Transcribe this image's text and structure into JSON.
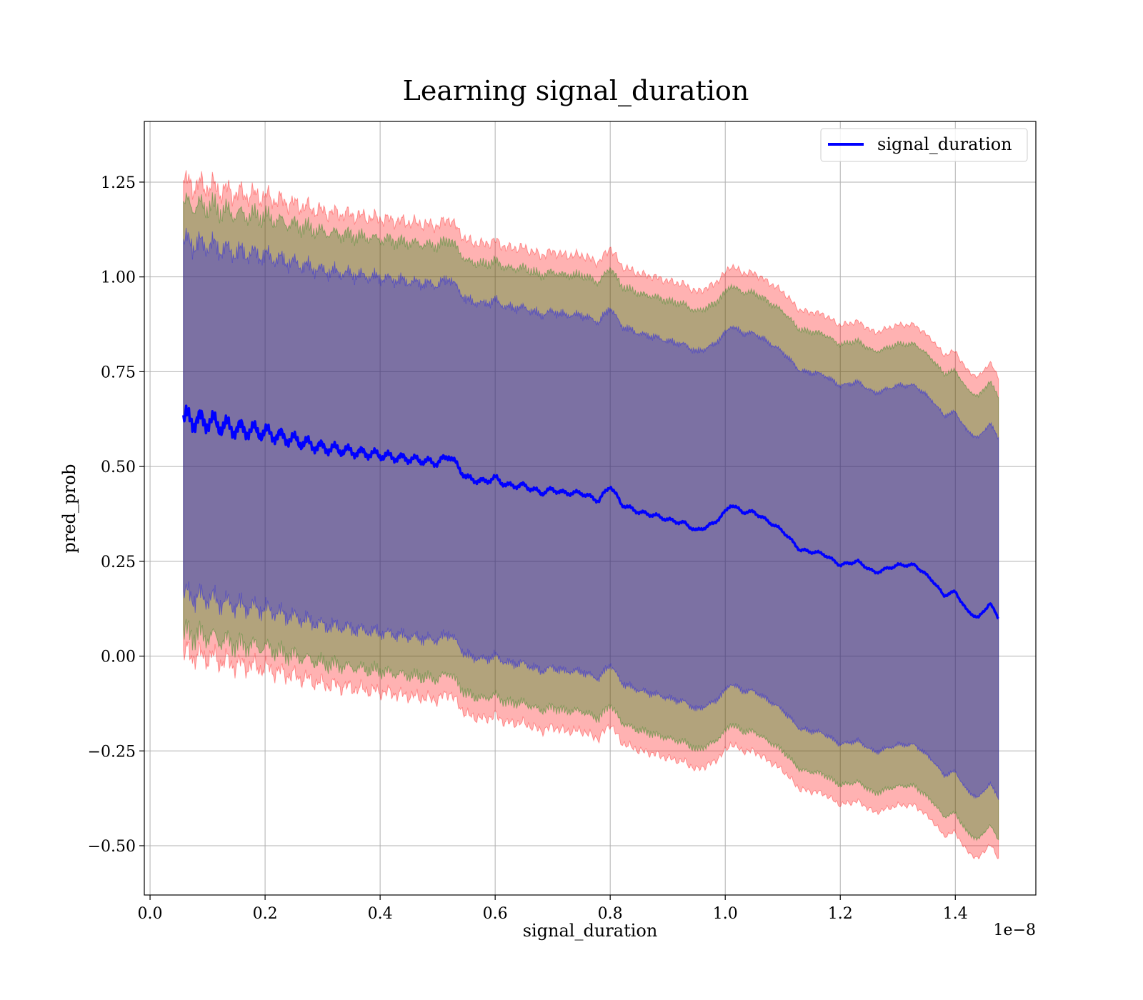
{
  "chart_data": {
    "type": "line",
    "title": "Learning signal_duration",
    "xlabel": "signal_duration",
    "ylabel": "pred_prob",
    "x_offset_label": "1e−8",
    "xlim": [
      -0.01,
      1.54
    ],
    "ylim": [
      -0.63,
      1.41
    ],
    "grid": true,
    "legend_position": "top-right",
    "x_ticks": [
      0.0,
      0.2,
      0.4,
      0.6,
      0.8,
      1.0,
      1.2,
      1.4
    ],
    "x_tick_labels": [
      "0.0",
      "0.2",
      "0.4",
      "0.6",
      "0.8",
      "1.0",
      "1.2",
      "1.4"
    ],
    "y_ticks": [
      -0.5,
      -0.25,
      0.0,
      0.25,
      0.5,
      0.75,
      1.0,
      1.25
    ],
    "y_tick_labels": [
      "−0.50",
      "−0.25",
      "0.00",
      "0.25",
      "0.50",
      "0.75",
      "1.00",
      "1.25"
    ],
    "series": [
      {
        "name": "signal_duration",
        "color": "#0000ff",
        "x": [
          0.058,
          0.07,
          0.08,
          0.1,
          0.12,
          0.15,
          0.2,
          0.25,
          0.3,
          0.35,
          0.4,
          0.45,
          0.5,
          0.52,
          0.55,
          0.58,
          0.6,
          0.62,
          0.65,
          0.68,
          0.7,
          0.72,
          0.75,
          0.78,
          0.8,
          0.82,
          0.85,
          0.88,
          0.9,
          0.93,
          0.95,
          0.98,
          1.0,
          1.01,
          1.03,
          1.05,
          1.08,
          1.1,
          1.13,
          1.17,
          1.2,
          1.23,
          1.26,
          1.3,
          1.33,
          1.36,
          1.38,
          1.4,
          1.42,
          1.44,
          1.46,
          1.475
        ],
        "y": [
          0.62,
          0.63,
          0.62,
          0.62,
          0.61,
          0.6,
          0.59,
          0.57,
          0.55,
          0.54,
          0.53,
          0.52,
          0.51,
          0.53,
          0.47,
          0.46,
          0.47,
          0.45,
          0.45,
          0.43,
          0.44,
          0.43,
          0.43,
          0.41,
          0.45,
          0.4,
          0.38,
          0.37,
          0.36,
          0.35,
          0.33,
          0.35,
          0.38,
          0.4,
          0.38,
          0.38,
          0.35,
          0.33,
          0.28,
          0.27,
          0.24,
          0.25,
          0.22,
          0.24,
          0.24,
          0.2,
          0.16,
          0.17,
          0.12,
          0.1,
          0.14,
          0.1
        ]
      }
    ],
    "bands": [
      {
        "color": "#ff0000",
        "opacity": 0.3,
        "width": 1.24,
        "width_end": 1.27
      },
      {
        "color": "#008000",
        "opacity": 0.3,
        "width": 1.13,
        "width_end": 1.17
      },
      {
        "color": "#0000ff",
        "opacity": 0.3,
        "width": 0.93,
        "width_end": 0.95
      }
    ]
  }
}
